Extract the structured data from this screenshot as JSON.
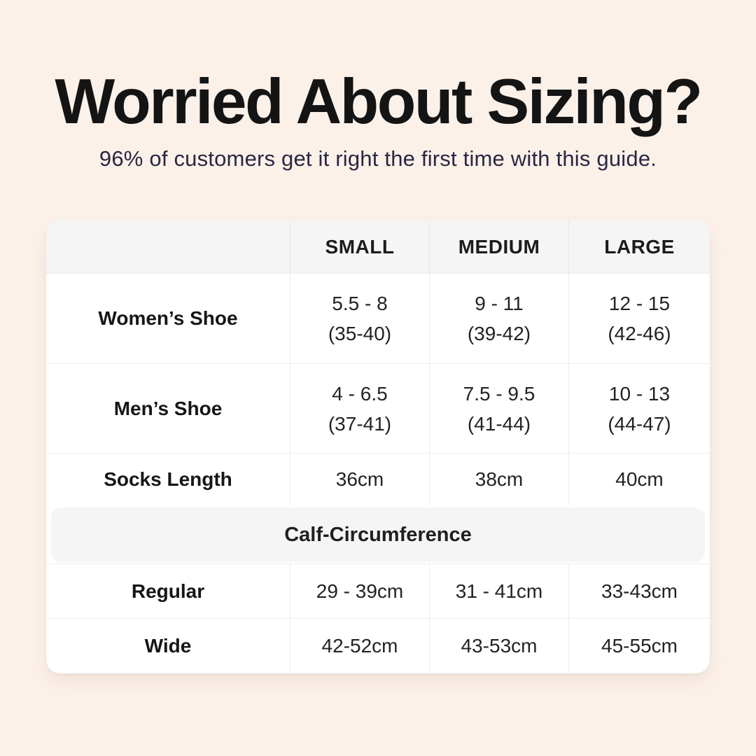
{
  "header": {
    "title": "Worried About Sizing?",
    "subtitle": "96% of customers get it right the first time with this guide."
  },
  "table": {
    "columns": {
      "small": "SMALL",
      "medium": "MEDIUM",
      "large": "LARGE"
    },
    "rows": {
      "womens": {
        "label": "Women’s Shoe",
        "small": "5.5 - 8\n(35-40)",
        "medium": "9 - 11\n(39-42)",
        "large": "12 - 15\n(42-46)"
      },
      "mens": {
        "label": "Men’s Shoe",
        "small": "4 - 6.5\n(37-41)",
        "medium": "7.5 - 9.5\n(41-44)",
        "large": "10 - 13\n(44-47)"
      },
      "socks": {
        "label": "Socks Length",
        "small": "36cm",
        "medium": "38cm",
        "large": "40cm"
      }
    },
    "section_header": "Calf-Circumference",
    "calf_rows": {
      "regular": {
        "label": "Regular",
        "small": "29 - 39cm",
        "medium": "31 - 41cm",
        "large": "33-43cm"
      },
      "wide": {
        "label": "Wide",
        "small": "42-52cm",
        "medium": "43-53cm",
        "large": "45-55cm"
      }
    }
  },
  "colors": {
    "background": "#fcf1e9",
    "card": "#ffffff",
    "header_band_gray": "#f5f5f5",
    "border": "#ededed",
    "title_text": "#141414",
    "subtitle_text": "#2a2741",
    "cell_text": "#232323"
  },
  "chart_data": {
    "type": "table",
    "title": "Worried About Sizing?",
    "subtitle": "96% of customers get it right the first time with this guide.",
    "columns": [
      "",
      "SMALL",
      "MEDIUM",
      "LARGE"
    ],
    "rows": [
      [
        "Women’s Shoe",
        "5.5 - 8 (35-40)",
        "9 - 11 (39-42)",
        "12 - 15 (42-46)"
      ],
      [
        "Men’s Shoe",
        "4 - 6.5 (37-41)",
        "7.5 - 9.5 (41-44)",
        "10 - 13 (44-47)"
      ],
      [
        "Socks Length",
        "36cm",
        "38cm",
        "40cm"
      ],
      [
        "Calf-Circumference",
        "",
        "",
        ""
      ],
      [
        "Regular",
        "29 - 39cm",
        "31 - 41cm",
        "33-43cm"
      ],
      [
        "Wide",
        "42-52cm",
        "43-53cm",
        "45-55cm"
      ]
    ]
  }
}
